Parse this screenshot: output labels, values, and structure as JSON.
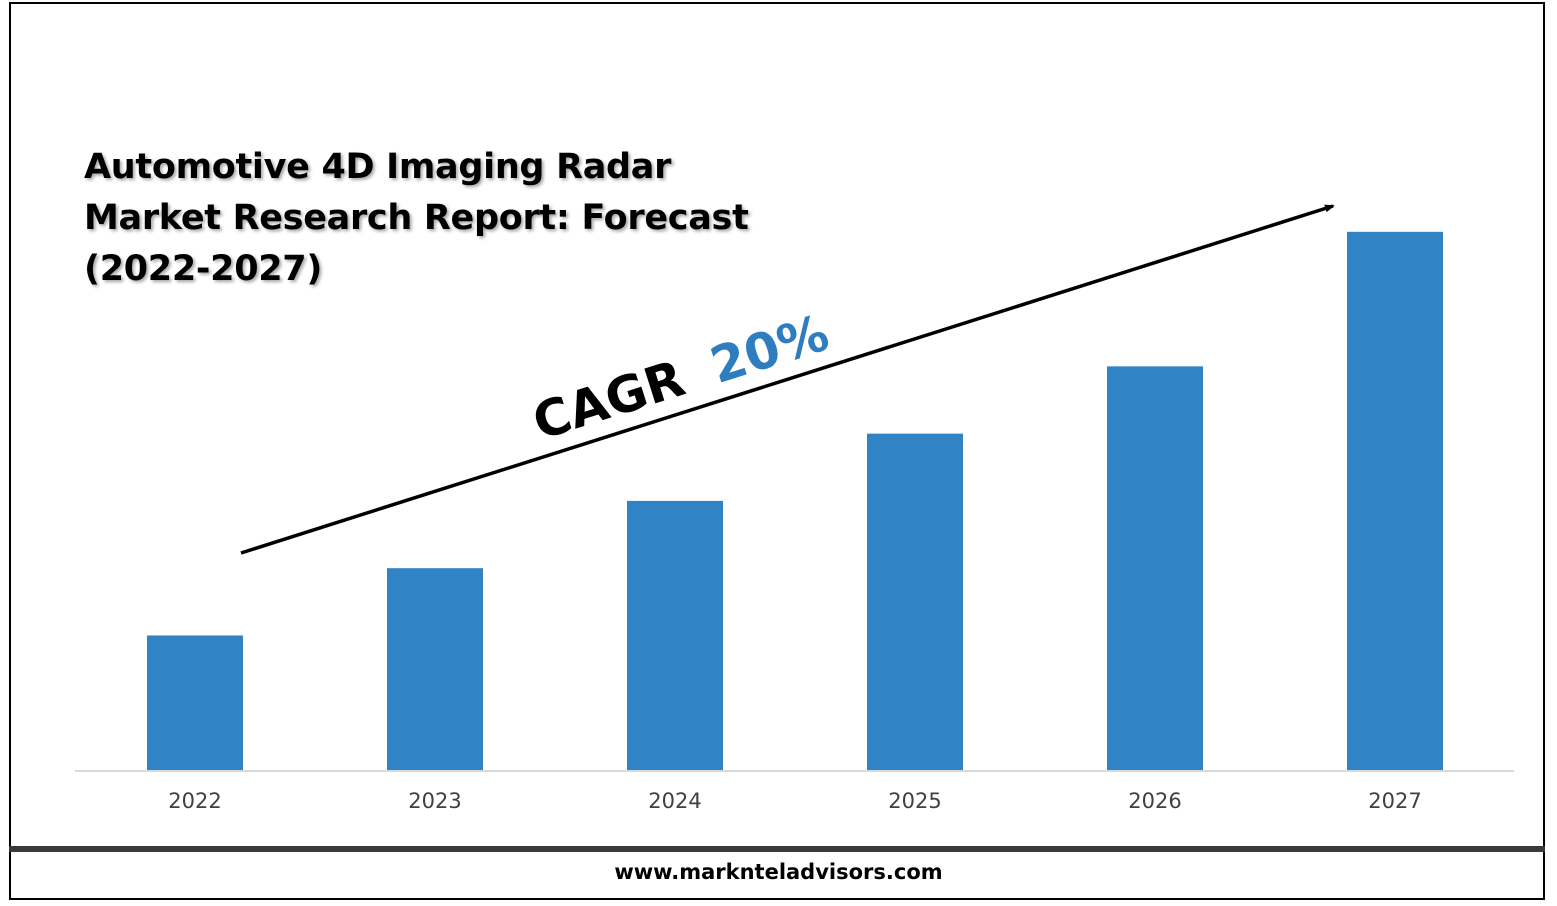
{
  "title_lines": [
    "Automotive 4D Imaging Radar",
    "Market Research Report: Forecast",
    "(2022-2027)"
  ],
  "cagr": {
    "label": "CAGR",
    "value": "20%",
    "value_color": "#2e7dc0"
  },
  "footer": {
    "url": "www.marknteladvisors.com"
  },
  "colors": {
    "bar": "#3083c4",
    "axis": "#d9d9d9",
    "tick_text": "#404040"
  },
  "chart_data": {
    "type": "bar",
    "categories": [
      "2022",
      "2023",
      "2024",
      "2025",
      "2026",
      "2027"
    ],
    "values": [
      1.0,
      1.5,
      2.0,
      2.5,
      3.0,
      4.0
    ],
    "ylim": [
      0,
      4.4
    ],
    "grid": false,
    "legend": "none",
    "annotations": [
      "CAGR 20%"
    ]
  }
}
